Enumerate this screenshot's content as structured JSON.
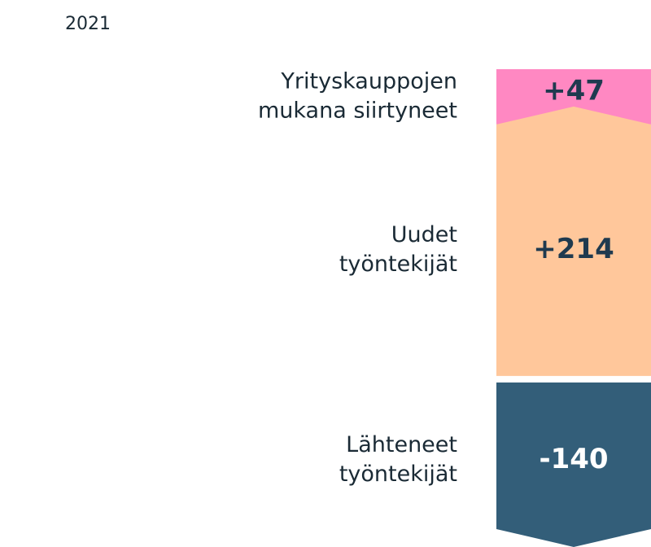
{
  "chart_data": {
    "type": "flow",
    "title": "2021",
    "categories": [
      [
        "Yrityskauppojen",
        "mukana siirtyneet"
      ],
      [
        "Uudet",
        "työntekijät"
      ],
      [
        "Lähteneet",
        "työntekijät"
      ]
    ],
    "values": [
      47,
      214,
      -140
    ],
    "value_labels": [
      "+47",
      "+214",
      "-140"
    ],
    "colors": [
      "#ff88c2",
      "#ffc79b",
      "#335e79"
    ]
  }
}
